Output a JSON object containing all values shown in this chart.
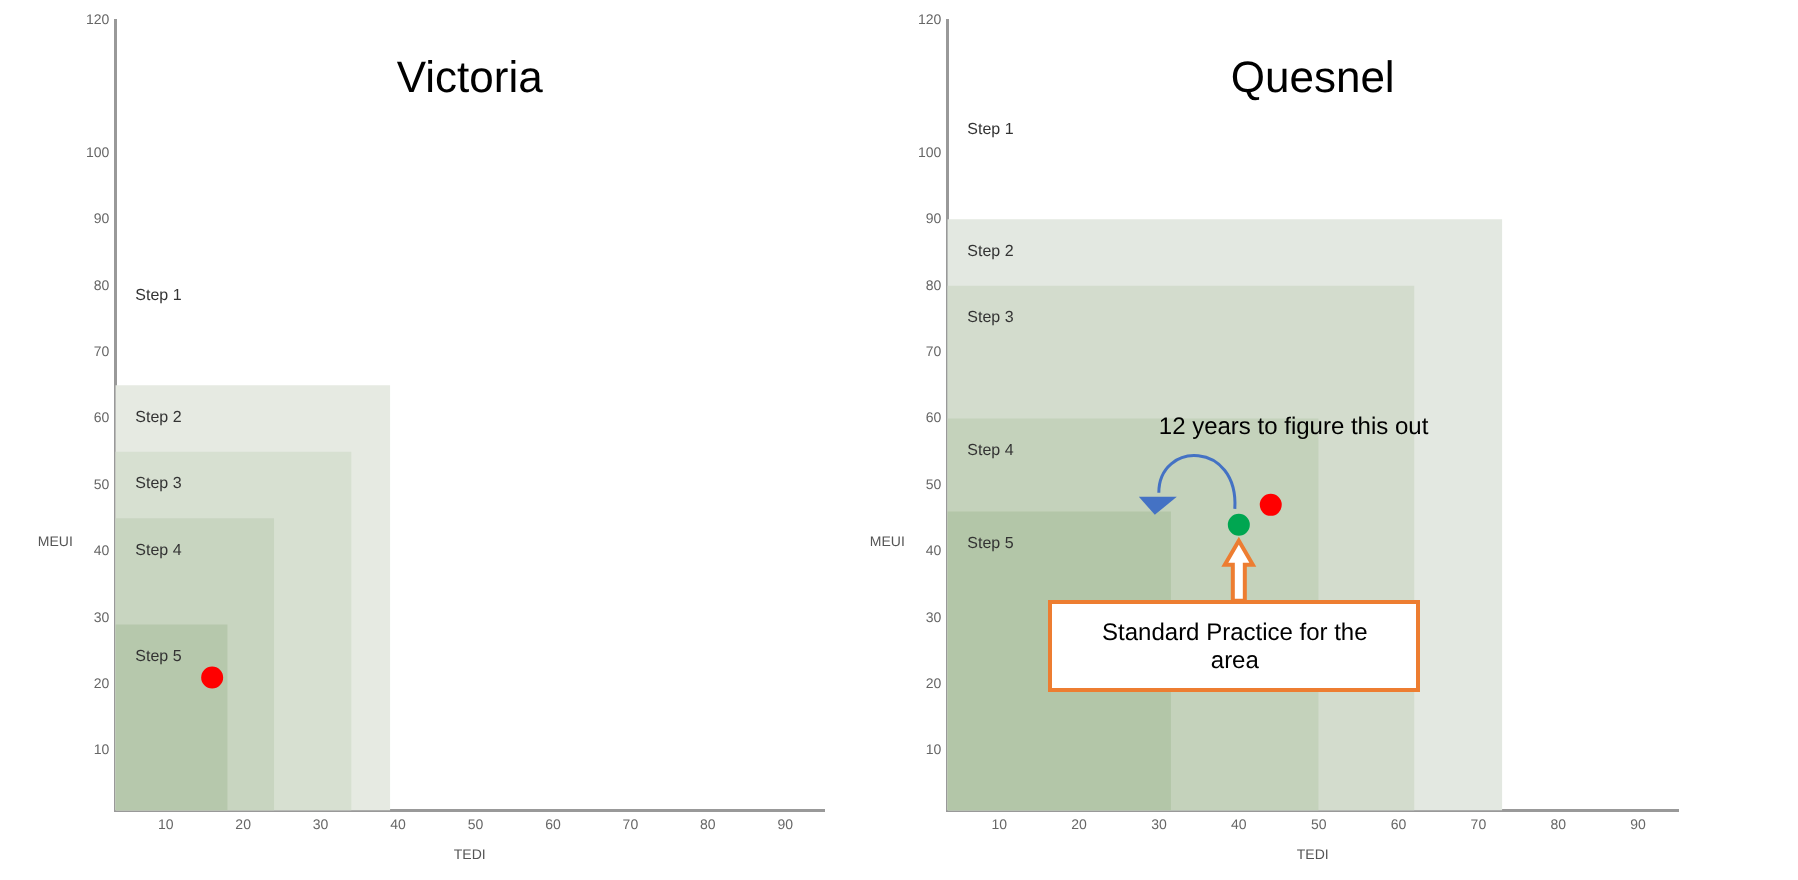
{
  "chart_data": [
    {
      "type": "scatter",
      "title": "Victoria",
      "xlabel": "TEDI",
      "ylabel": "MEUI",
      "xlim": [
        3.5,
        95
      ],
      "ylim": [
        1,
        120
      ],
      "xticks": [
        10,
        20,
        30,
        40,
        50,
        60,
        70,
        80,
        90
      ],
      "yticks": [
        10,
        20,
        30,
        40,
        50,
        60,
        70,
        80,
        90,
        100,
        120
      ],
      "grid": false,
      "legend": false,
      "series": [
        {
          "type": "area",
          "name": "Step 2",
          "color": "#e6eae2",
          "x": [
            3.5,
            39
          ],
          "values": [
            65,
            65
          ]
        },
        {
          "type": "area",
          "name": "Step 3",
          "color": "#d7e0d1",
          "x": [
            3.5,
            34
          ],
          "values": [
            55,
            55
          ]
        },
        {
          "type": "area",
          "name": "Step 4",
          "color": "#c8d5c0",
          "x": [
            3.5,
            24
          ],
          "values": [
            45,
            45
          ]
        },
        {
          "type": "area",
          "name": "Step 5",
          "color": "#b6c8ac",
          "x": [
            3.5,
            18
          ],
          "values": [
            29,
            29
          ]
        },
        {
          "color": "#ff0000",
          "marker": "circle",
          "x": [
            16
          ],
          "values": [
            21
          ]
        }
      ],
      "annotations": [
        "Step 1"
      ]
    },
    {
      "type": "scatter",
      "title": "Quesnel",
      "xlabel": "TEDI",
      "ylabel": "MEUI",
      "xlim": [
        3.5,
        95
      ],
      "ylim": [
        1,
        120
      ],
      "xticks": [
        10,
        20,
        30,
        40,
        50,
        60,
        70,
        80,
        90
      ],
      "yticks": [
        10,
        20,
        30,
        40,
        50,
        60,
        70,
        80,
        90,
        100,
        120
      ],
      "grid": false,
      "legend": false,
      "series": [
        {
          "type": "area",
          "name": "Step 2",
          "color": "#e3e8e1",
          "x": [
            3.5,
            73
          ],
          "values": [
            90,
            90
          ]
        },
        {
          "type": "area",
          "name": "Step 3",
          "color": "#d3dccd",
          "x": [
            3.5,
            62
          ],
          "values": [
            80,
            80
          ]
        },
        {
          "type": "area",
          "name": "Step 4",
          "color": "#c4d2bb",
          "x": [
            3.5,
            50
          ],
          "values": [
            60,
            60
          ]
        },
        {
          "type": "area",
          "name": "Step 5",
          "color": "#b3c6a8",
          "x": [
            3.5,
            31.5
          ],
          "values": [
            46,
            46
          ]
        },
        {
          "color": "#ff0000",
          "marker": "circle",
          "x": [
            44
          ],
          "values": [
            47
          ]
        },
        {
          "color": "#00a651",
          "marker": "circle",
          "x": [
            40
          ],
          "values": [
            44
          ]
        }
      ],
      "annotations": [
        "Step 1",
        "12 years to figure this out",
        "Standard Practice for the area"
      ]
    }
  ]
}
